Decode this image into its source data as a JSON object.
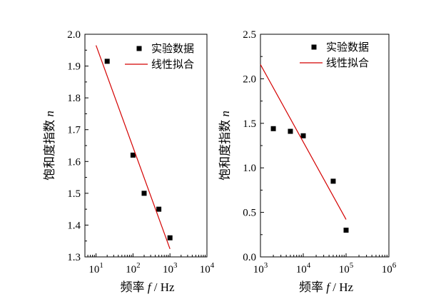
{
  "chart_data": [
    {
      "type": "scatter",
      "ylabel": "饱和度指数",
      "ylabel_var": "n",
      "xlabel": "频率",
      "xlabel_var": "f",
      "xlabel_unit": "/ Hz",
      "x_scale": "log",
      "xlim": [
        5,
        10000
      ],
      "ylim": [
        1.3,
        2.0
      ],
      "x_ticks": [
        {
          "value": 10,
          "base": "10",
          "exp": "1"
        },
        {
          "value": 100,
          "base": "10",
          "exp": "2"
        },
        {
          "value": 1000,
          "base": "10",
          "exp": "3"
        },
        {
          "value": 10000,
          "base": "10",
          "exp": "4"
        }
      ],
      "y_ticks": [
        {
          "value": 1.3,
          "label": "1.3"
        },
        {
          "value": 1.4,
          "label": "1.4"
        },
        {
          "value": 1.5,
          "label": "1.5"
        },
        {
          "value": 1.6,
          "label": "1.6"
        },
        {
          "value": 1.7,
          "label": "1.7"
        },
        {
          "value": 1.8,
          "label": "1.8"
        },
        {
          "value": 1.9,
          "label": "1.9"
        },
        {
          "value": 2.0,
          "label": "2.0"
        }
      ],
      "legend": {
        "position": "top-right",
        "scatter_label": "实验数据",
        "fit_label": "线性拟合"
      },
      "series": [
        {
          "name": "实验数据",
          "kind": "scatter",
          "x": [
            20,
            100,
            200,
            500,
            1000
          ],
          "y": [
            1.915,
            1.62,
            1.5,
            1.45,
            1.36
          ]
        },
        {
          "name": "线性拟合",
          "kind": "line",
          "x": [
            10,
            1000
          ],
          "y": [
            1.965,
            1.325
          ]
        }
      ]
    },
    {
      "type": "scatter",
      "ylabel": "饱和度指数",
      "ylabel_var": "n",
      "xlabel": "频率",
      "xlabel_var": "f",
      "xlabel_unit": "/ Hz",
      "x_scale": "log",
      "xlim": [
        1000,
        1000000
      ],
      "ylim": [
        0.0,
        2.5
      ],
      "x_ticks": [
        {
          "value": 1000,
          "base": "10",
          "exp": "3"
        },
        {
          "value": 10000,
          "base": "10",
          "exp": "4"
        },
        {
          "value": 100000,
          "base": "10",
          "exp": "5"
        },
        {
          "value": 1000000,
          "base": "10",
          "exp": "6"
        }
      ],
      "y_ticks": [
        {
          "value": 0.0,
          "label": "0.0"
        },
        {
          "value": 0.5,
          "label": "0.5"
        },
        {
          "value": 1.0,
          "label": "1.0"
        },
        {
          "value": 1.5,
          "label": "1.5"
        },
        {
          "value": 2.0,
          "label": "2.0"
        },
        {
          "value": 2.5,
          "label": "2.5"
        }
      ],
      "legend": {
        "position": "top-right",
        "scatter_label": "实验数据",
        "fit_label": "线性拟合"
      },
      "series": [
        {
          "name": "实验数据",
          "kind": "scatter",
          "x": [
            2000,
            5000,
            10000,
            50000,
            100000
          ],
          "y": [
            1.44,
            1.41,
            1.36,
            0.85,
            0.3
          ]
        },
        {
          "name": "线性拟合",
          "kind": "line",
          "x": [
            1000,
            100000
          ],
          "y": [
            2.16,
            0.42
          ]
        }
      ]
    }
  ]
}
